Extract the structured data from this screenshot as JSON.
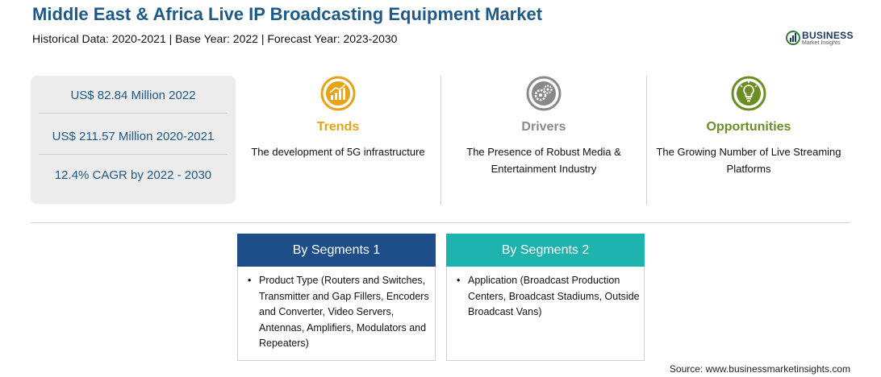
{
  "header": {
    "title": "Middle East & Africa Live IP Broadcasting Equipment Market",
    "subtitle": "Historical Data: 2020-2021 | Base Year: 2022 | Forecast Year: 2023-2030"
  },
  "logo": {
    "name": "BUSINESS",
    "tagline": "Market Insights"
  },
  "stats": [
    {
      "text": "US$ 82.84 Million 2022"
    },
    {
      "text": "US$ 211.57 Million 2020-2021"
    },
    {
      "text": "12.4% CAGR by 2022 - 2030"
    }
  ],
  "columns": [
    {
      "label": "Trends",
      "text": "The development of 5G infrastructure",
      "color": "#e8a317",
      "icon": "chart-trend-icon"
    },
    {
      "label": "Drivers",
      "text": "The Presence of Robust Media & Entertainment Industry",
      "color": "#8a8a8a",
      "icon": "gears-icon"
    },
    {
      "label": "Opportunities",
      "text": "The Growing Number of Live Streaming Platforms",
      "color": "#6b8e23",
      "icon": "lightbulb-icon"
    }
  ],
  "segments": [
    {
      "title": "By Segments 1",
      "color": "#1d4e8a",
      "items": [
        "Product Type (Routers and Switches, Transmitter and Gap Fillers, Encoders and Converter, Video Servers, Antennas, Amplifiers, Modulators and Repeaters)"
      ]
    },
    {
      "title": "By Segments 2",
      "color": "#1fb3ad",
      "items": [
        "Application (Broadcast Production Centers, Broadcast Stadiums, Outside Broadcast Vans)"
      ]
    }
  ],
  "source": "Source: www.businessmarketinsights.com"
}
